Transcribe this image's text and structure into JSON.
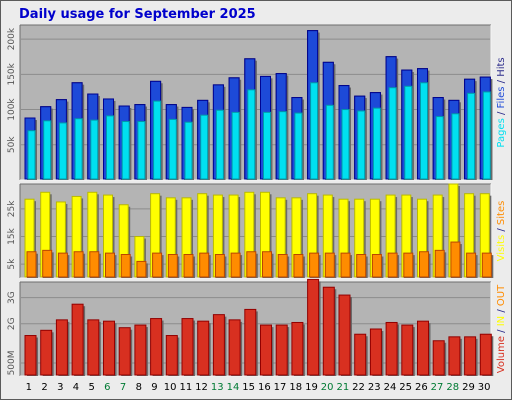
{
  "title": "Daily usage for September 2025",
  "colors": {
    "pages": "#00e0f0",
    "files": "#1d4ad8",
    "hits": "#2a2a8a",
    "visits": "#ffff00",
    "sites": "#ff8c00",
    "kbytes": "#d83020",
    "weekday_label": "#000000",
    "weekend_label": "#007a33",
    "plot_bg": "#b4b4b4",
    "frame_bg": "#ececec"
  },
  "chart_data": [
    {
      "type": "bar",
      "panel": "hits_files_pages",
      "x": [
        1,
        2,
        3,
        4,
        5,
        6,
        7,
        8,
        9,
        10,
        11,
        12,
        13,
        14,
        15,
        16,
        17,
        18,
        19,
        20,
        21,
        22,
        23,
        24,
        25,
        26,
        27,
        28,
        29,
        30
      ],
      "weekend_days": [
        6,
        7,
        13,
        14,
        20,
        21,
        27,
        28
      ],
      "yticks": [
        {
          "value": 50000,
          "label": "50k"
        },
        {
          "value": 100000,
          "label": "100k"
        },
        {
          "value": 150000,
          "label": "150k"
        },
        {
          "value": 200000,
          "label": "200k"
        }
      ],
      "ylim": [
        0,
        220000
      ],
      "axis_label_parts": [
        {
          "text": "Pages",
          "color_key": "pages"
        },
        {
          "text": " / ",
          "color_key": "hits"
        },
        {
          "text": "Files",
          "color_key": "files"
        },
        {
          "text": " / ",
          "color_key": "hits"
        },
        {
          "text": "Hits",
          "color_key": "hits"
        }
      ],
      "series": [
        {
          "name": "Hits",
          "color_key": "hits",
          "values": [
            88000,
            104000,
            114000,
            138000,
            122000,
            115000,
            105000,
            107000,
            140000,
            107000,
            103000,
            113000,
            135000,
            145000,
            172000,
            147000,
            151000,
            117000,
            212000,
            167000,
            134000,
            119000,
            124000,
            175000,
            156000,
            158000,
            117000,
            113000,
            143000,
            146000
          ]
        },
        {
          "name": "Files",
          "color_key": "files",
          "values": [
            88000,
            104000,
            114000,
            138000,
            122000,
            115000,
            105000,
            107000,
            140000,
            107000,
            103000,
            113000,
            135000,
            145000,
            172000,
            147000,
            151000,
            117000,
            212000,
            167000,
            134000,
            119000,
            124000,
            175000,
            156000,
            158000,
            117000,
            113000,
            143000,
            146000
          ]
        },
        {
          "name": "Pages",
          "color_key": "pages",
          "values": [
            70000,
            84000,
            81000,
            87000,
            85000,
            91000,
            83000,
            83000,
            112000,
            86000,
            82000,
            92000,
            99000,
            96000,
            128000,
            96000,
            97000,
            95000,
            138000,
            106000,
            100000,
            98000,
            102000,
            131000,
            133000,
            138000,
            90000,
            94000,
            123000,
            125000
          ]
        }
      ]
    },
    {
      "type": "bar",
      "panel": "visits_sites",
      "x": [
        1,
        2,
        3,
        4,
        5,
        6,
        7,
        8,
        9,
        10,
        11,
        12,
        13,
        14,
        15,
        16,
        17,
        18,
        19,
        20,
        21,
        22,
        23,
        24,
        25,
        26,
        27,
        28,
        29,
        30
      ],
      "yticks": [
        {
          "value": 5000,
          "label": "5k"
        },
        {
          "value": 15000,
          "label": "15k"
        },
        {
          "value": 25000,
          "label": "25k"
        }
      ],
      "ylim": [
        0,
        34000
      ],
      "axis_label_parts": [
        {
          "text": "Visits",
          "color_key": "visits"
        },
        {
          "text": " / ",
          "color_key": "hits"
        },
        {
          "text": "Sites",
          "color_key": "sites"
        }
      ],
      "series": [
        {
          "name": "Visits",
          "color_key": "visits",
          "values": [
            28500,
            31000,
            27500,
            29500,
            31000,
            30000,
            26500,
            15000,
            30500,
            29000,
            29000,
            30500,
            30000,
            30000,
            31000,
            31000,
            29000,
            29000,
            30500,
            30000,
            28500,
            28500,
            28500,
            30000,
            30000,
            28500,
            30000,
            34000,
            30500,
            30500
          ]
        },
        {
          "name": "Sites",
          "color_key": "sites",
          "values": [
            9500,
            10000,
            9000,
            9500,
            9500,
            9000,
            8500,
            6000,
            9000,
            8500,
            8500,
            9000,
            8500,
            9000,
            9500,
            9500,
            8500,
            8500,
            9000,
            9000,
            9000,
            8500,
            8500,
            9000,
            9000,
            9500,
            10000,
            13000,
            9000,
            9000
          ]
        }
      ]
    },
    {
      "type": "bar",
      "panel": "kbytes",
      "x": [
        1,
        2,
        3,
        4,
        5,
        6,
        7,
        8,
        9,
        10,
        11,
        12,
        13,
        14,
        15,
        16,
        17,
        18,
        19,
        20,
        21,
        22,
        23,
        24,
        25,
        26,
        27,
        28,
        29,
        30
      ],
      "yticks": [
        {
          "value": 500,
          "label": "500M"
        },
        {
          "value": 2000,
          "label": "2G"
        },
        {
          "value": 3000,
          "label": "3G"
        }
      ],
      "ylim": [
        0,
        3600
      ],
      "axis_label_parts": [
        {
          "text": "Volume",
          "color_key": "kbytes"
        },
        {
          "text": " / ",
          "color_key": "hits"
        },
        {
          "text": "IN",
          "color_key": "visits"
        },
        {
          "text": " / ",
          "color_key": "hits"
        },
        {
          "text": "OUT",
          "color_key": "sites"
        }
      ],
      "series": [
        {
          "name": "Volume",
          "color_key": "kbytes",
          "values": [
            1550,
            1750,
            2150,
            2750,
            2150,
            2100,
            1850,
            1950,
            2200,
            1550,
            2200,
            2100,
            2350,
            2150,
            2550,
            1950,
            1950,
            2050,
            3700,
            3400,
            3100,
            1600,
            1800,
            2050,
            1950,
            2100,
            1350,
            1500,
            1500,
            1600
          ]
        }
      ]
    }
  ]
}
